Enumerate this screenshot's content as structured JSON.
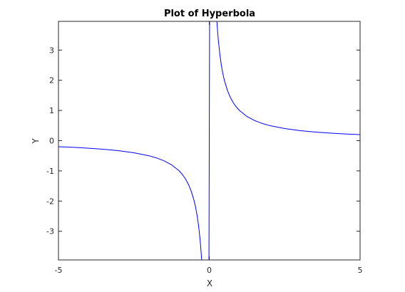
{
  "chart_data": {
    "type": "line",
    "title": "Plot of Hyperbola",
    "xlabel": "X",
    "ylabel": "Y",
    "xlim": [
      -5,
      5
    ],
    "ylim": [
      -3.95,
      3.95
    ],
    "xticks": [
      -5,
      0,
      5
    ],
    "yticks": [
      -3,
      -2,
      -1,
      0,
      1,
      2,
      3
    ],
    "xtick_labels": [
      "-5",
      "0",
      "5"
    ],
    "ytick_labels": [
      "-3",
      "-2",
      "-1",
      "0",
      "1",
      "2",
      "3"
    ],
    "grid": false,
    "legend": "none",
    "series": [
      {
        "color": "#0000ff",
        "segments": [
          {
            "x": [
              -5.0,
              -4.5,
              -4.0,
              -3.5,
              -3.0,
              -2.5,
              -2.0,
              -1.75,
              -1.5,
              -1.25,
              -1.0,
              -0.9,
              -0.8,
              -0.7,
              -0.6,
              -0.5,
              -0.45,
              -0.4,
              -0.35,
              -0.3,
              -0.28,
              -0.26,
              -0.254
            ],
            "y": [
              -0.2,
              -0.222,
              -0.25,
              -0.286,
              -0.333,
              -0.4,
              -0.5,
              -0.571,
              -0.667,
              -0.8,
              -1.0,
              -1.111,
              -1.25,
              -1.429,
              -1.667,
              -2.0,
              -2.222,
              -2.5,
              -2.857,
              -3.333,
              -3.571,
              -3.846,
              -3.937
            ]
          },
          {
            "x": [
              -0.02,
              -0.01,
              0.0,
              0.01,
              0.02
            ],
            "y": [
              -3.95,
              -3.95,
              0,
              3.95,
              3.95
            ]
          },
          {
            "x": [
              0.254,
              0.26,
              0.28,
              0.3,
              0.35,
              0.4,
              0.45,
              0.5,
              0.6,
              0.7,
              0.8,
              0.9,
              1.0,
              1.25,
              1.5,
              1.75,
              2.0,
              2.5,
              3.0,
              3.5,
              4.0,
              4.5,
              5.0
            ],
            "y": [
              3.937,
              3.846,
              3.571,
              3.333,
              2.857,
              2.5,
              2.222,
              2.0,
              1.667,
              1.429,
              1.25,
              1.111,
              1.0,
              0.8,
              0.667,
              0.571,
              0.5,
              0.4,
              0.333,
              0.286,
              0.25,
              0.222,
              0.2
            ]
          }
        ]
      }
    ]
  }
}
